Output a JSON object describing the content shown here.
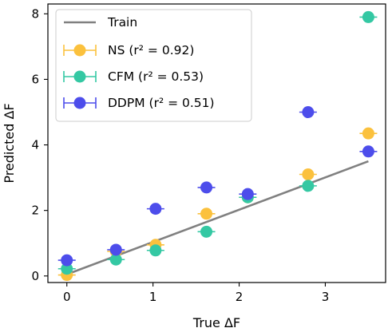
{
  "chart_data": {
    "type": "scatter",
    "xlabel": "True ΔF",
    "ylabel": "Predicted ΔF",
    "xlim": [
      -0.22,
      3.7
    ],
    "ylim": [
      -0.2,
      8.3
    ],
    "x_ticks": [
      0,
      1,
      2,
      3
    ],
    "y_ticks": [
      0,
      2,
      4,
      6,
      8
    ],
    "grid": false,
    "legend_position": "top-left",
    "train_line": {
      "name": "Train",
      "color": "#808080",
      "x": [
        0.0,
        3.5
      ],
      "y": [
        0.05,
        3.5
      ]
    },
    "series": [
      {
        "name": "NS (r² = 0.92)",
        "color": "#fbc13d",
        "x": [
          0.0,
          0.57,
          1.03,
          1.62,
          2.1,
          2.8,
          3.5
        ],
        "y": [
          0.03,
          0.75,
          0.95,
          1.9,
          2.4,
          3.1,
          4.35
        ]
      },
      {
        "name": "CFM (r² = 0.53)",
        "color": "#34c8a3",
        "x": [
          0.0,
          0.57,
          1.03,
          1.62,
          2.1,
          2.8,
          3.5
        ],
        "y": [
          0.22,
          0.5,
          0.78,
          1.35,
          2.4,
          2.75,
          7.9
        ]
      },
      {
        "name": "DDPM (r² = 0.51)",
        "color": "#4d4deb",
        "x": [
          0.0,
          0.57,
          1.03,
          1.62,
          2.1,
          2.8,
          3.5
        ],
        "y": [
          0.48,
          0.8,
          2.05,
          2.7,
          2.5,
          5.0,
          3.8
        ]
      }
    ]
  }
}
